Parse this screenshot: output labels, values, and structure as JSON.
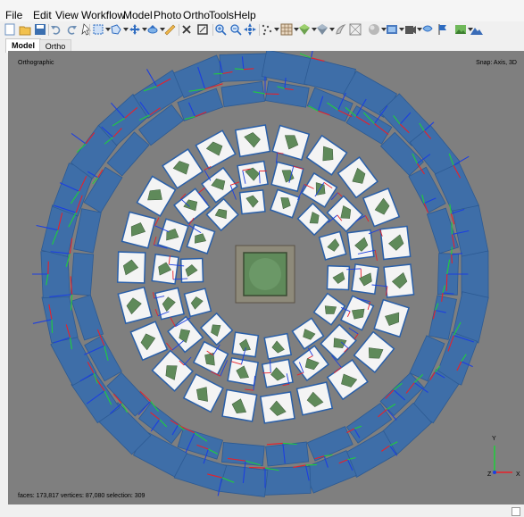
{
  "menu": [
    "File",
    "Edit",
    "View",
    "Workflow",
    "Model",
    "Photo",
    "Ortho",
    "Tools",
    "Help"
  ],
  "tabs": {
    "model": "Model",
    "ortho": "Ortho"
  },
  "viewport": {
    "projection_label": "Orthographic",
    "snap_label": "Snap: Axis, 3D",
    "stats_label": "faces: 173,817 vertices: 87,080 selection: 309",
    "axis_labels": {
      "y": "Y",
      "z": "Z",
      "x": "X"
    }
  },
  "toolbar_icons": [
    "new-icon",
    "open-icon",
    "save-icon",
    "undo-icon",
    "redo-icon",
    "pointer-icon",
    "rect-select-icon",
    "polygon-select-icon",
    "move-icon",
    "rotate-icon",
    "ruler-icon",
    "delete-icon",
    "crop-icon",
    "zoom-in-icon",
    "zoom-out-icon",
    "navigate-icon",
    "points-icon",
    "grid-icon",
    "shaded-icon",
    "model-view-icon",
    "texture-icon",
    "wireframe-icon",
    "sphere-icon",
    "camera-icon",
    "cameras-toggle-icon",
    "markers-icon",
    "flag-icon",
    "image-icon",
    "mountain-icon"
  ],
  "colors": {
    "viewport_bg": "#7f7f7f",
    "camera_plane": "#3e6ea8",
    "camera_frame": "#2a5fa8",
    "photo_white": "#f4f4f4",
    "model_green": "#5f8a5a",
    "axis_red": "#e8202a",
    "axis_green": "#1fcf3a",
    "axis_blue": "#1c3fe0"
  }
}
